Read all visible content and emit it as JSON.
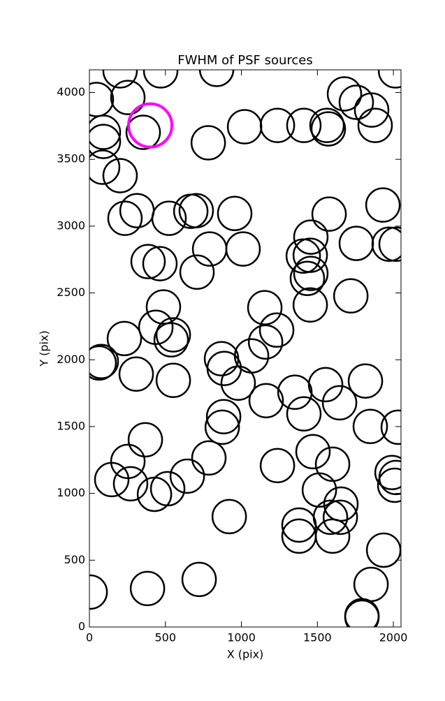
{
  "chart_data": {
    "type": "scatter",
    "title": "FWHM of PSF sources",
    "x_label": "X (pix)",
    "y_label": "Y (pix)",
    "xlim": [
      0,
      2050
    ],
    "ylim": [
      0,
      4170
    ],
    "xticks": [
      0,
      500,
      1000,
      1500,
      2000
    ],
    "yticks": [
      0,
      500,
      1000,
      1500,
      2000,
      2500,
      3000,
      3500,
      4000
    ],
    "series": [
      {
        "color": "#000000",
        "x": [
          202,
          469,
          837,
          2014,
          46,
          253,
          1678,
          1756,
          1857,
          92,
          92,
          354,
          782,
          1021,
          1237,
          1411,
          1563,
          1572,
          1880,
          87,
          202,
          234,
          313,
          524,
          667,
          703,
          956,
          1577,
          1931,
          1972,
          2018,
          791,
          1011,
          1756,
          386,
          464,
          708,
          1407,
          1457,
          1453,
          1457,
          1434,
          1453,
          1720,
          487,
          1154,
          437,
          552,
          538,
          1232,
          230,
          1159,
          78,
          64,
          869,
          1067,
          887,
          308,
          979,
          552,
          1352,
          1554,
          1816,
          1163,
          1646,
          1411,
          883,
          874,
          1848,
          2032,
          368,
          1471,
          253,
          147,
          271,
          786,
          644,
          515,
          428,
          1237,
          1600,
          1991,
          2018,
          2009,
          1513,
          1655,
          1586,
          1651,
          920,
          1379,
          1379,
          1600,
          1936,
          5,
          382,
          722,
          1853,
          1793,
          1793
        ],
        "values": [
          4162,
          4162,
          4173,
          4162,
          3948,
          3963,
          3990,
          3927,
          3869,
          3702,
          3634,
          3702,
          3624,
          3744,
          3754,
          3754,
          3754,
          3728,
          3754,
          3441,
          3378,
          3059,
          3116,
          3059,
          3111,
          3116,
          3095,
          3090,
          3158,
          2865,
          2865,
          2829,
          2829,
          2871,
          2735,
          2719,
          2656,
          2776,
          2918,
          2782,
          2646,
          2609,
          2410,
          2478,
          2395,
          2390,
          2243,
          2186,
          2149,
          2222,
          2159,
          2133,
          1987,
          1976,
          2008,
          2029,
          1935,
          1893,
          1825,
          1846,
          1757,
          1814,
          1841,
          1694,
          1678,
          1595,
          1574,
          1495,
          1501,
          1495,
          1401,
          1312,
          1239,
          1103,
          1072,
          1265,
          1129,
          1035,
          993,
          1208,
          1218,
          1156,
          1119,
          1061,
          1025,
          920,
          821,
          821,
          826,
          763,
          680,
          680,
          575,
          261,
          288,
          356,
          319,
          84,
          73
        ]
      },
      {
        "color": "#ff00ff",
        "x": [
          400
        ],
        "values": [
          3754
        ]
      }
    ]
  }
}
